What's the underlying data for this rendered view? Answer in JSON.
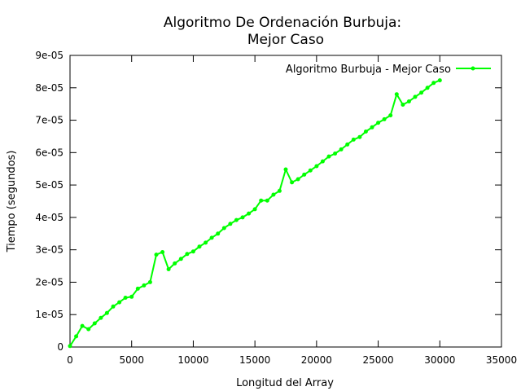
{
  "chart_data": {
    "type": "line",
    "title_line1": "Algoritmo De Ordenación Burbuja:",
    "title_line2": "Mejor Caso",
    "xlabel": "Longitud del Array",
    "ylabel": "Tiempo (segundos)",
    "xlim": [
      0,
      35000
    ],
    "ylim": [
      0,
      9e-05
    ],
    "x_ticks": [
      0,
      5000,
      10000,
      15000,
      20000,
      25000,
      30000,
      35000
    ],
    "x_tick_labels": [
      "0",
      "5000",
      "10000",
      "15000",
      "20000",
      "25000",
      "30000",
      "35000"
    ],
    "y_ticks": [
      0,
      1e-05,
      2e-05,
      3e-05,
      4e-05,
      5e-05,
      6e-05,
      7e-05,
      8e-05,
      9e-05
    ],
    "y_tick_labels": [
      "0",
      "1e-05",
      "2e-05",
      "3e-05",
      "4e-05",
      "5e-05",
      "6e-05",
      "7e-05",
      "8e-05",
      "9e-05"
    ],
    "grid": false,
    "legend_position": "top-right",
    "series": [
      {
        "name": "Algoritmo Burbuja - Mejor Caso",
        "color": "#00ff00",
        "marker": "dot",
        "x": [
          0,
          500,
          1000,
          1500,
          2000,
          2500,
          3000,
          3500,
          4000,
          4500,
          5000,
          5500,
          6000,
          6500,
          7000,
          7500,
          8000,
          8500,
          9000,
          9500,
          10000,
          10500,
          11000,
          11500,
          12000,
          12500,
          13000,
          13500,
          14000,
          14500,
          15000,
          15500,
          16000,
          16500,
          17000,
          17500,
          18000,
          18500,
          19000,
          19500,
          20000,
          20500,
          21000,
          21500,
          22000,
          22500,
          23000,
          23500,
          24000,
          24500,
          25000,
          25500,
          26000,
          26500,
          27000,
          27500,
          28000,
          28500,
          29000,
          29500,
          30000
        ],
        "y": [
          3e-07,
          3.3e-06,
          6.5e-06,
          5.5e-06,
          7.3e-06,
          9e-06,
          1.05e-05,
          1.25e-05,
          1.38e-05,
          1.52e-05,
          1.55e-05,
          1.8e-05,
          1.9e-05,
          2e-05,
          2.85e-05,
          2.93e-05,
          2.4e-05,
          2.58e-05,
          2.72e-05,
          2.87e-05,
          2.95e-05,
          3.1e-05,
          3.22e-05,
          3.37e-05,
          3.5e-05,
          3.67e-05,
          3.8e-05,
          3.92e-05,
          4e-05,
          4.12e-05,
          4.25e-05,
          4.52e-05,
          4.52e-05,
          4.7e-05,
          4.82e-05,
          5.48e-05,
          5.08e-05,
          5.18e-05,
          5.32e-05,
          5.45e-05,
          5.58e-05,
          5.73e-05,
          5.88e-05,
          5.97e-05,
          6.1e-05,
          6.25e-05,
          6.4e-05,
          6.48e-05,
          6.65e-05,
          6.78e-05,
          6.92e-05,
          7.03e-05,
          7.15e-05,
          7.8e-05,
          7.48e-05,
          7.58e-05,
          7.72e-05,
          7.85e-05,
          8e-05,
          8.15e-05,
          8.23e-05
        ]
      }
    ]
  }
}
